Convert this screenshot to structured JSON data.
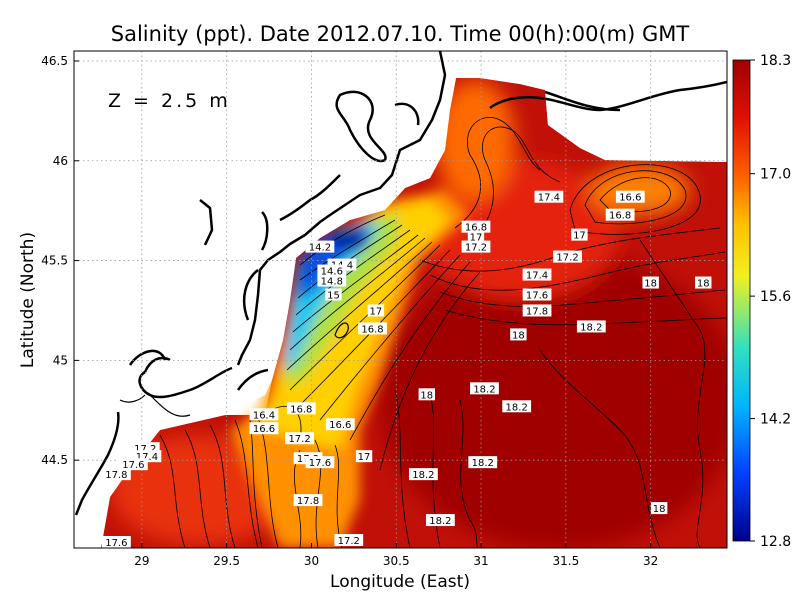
{
  "title": "Salinity (ppt). Date 2012.07.10. Time 00(h):00(m) GMT",
  "depth_label": "Z = 2.5 m",
  "x_axis": {
    "label": "Longitude (East)",
    "range": [
      28.6,
      32.45
    ],
    "ticks": [
      29,
      29.5,
      30,
      30.5,
      31,
      31.5,
      32
    ]
  },
  "y_axis": {
    "label": "Latitude (North)",
    "range": [
      44.06,
      46.55
    ],
    "ticks": [
      44.5,
      45,
      45.5,
      46,
      46.5
    ]
  },
  "colorbar": {
    "min": 12.8,
    "max": 18.3,
    "tick_labels": [
      "18.3",
      "17.0",
      "15.6",
      "14.2",
      "12.8"
    ],
    "tick_values": [
      18.3,
      17.0,
      15.6,
      14.2,
      12.8
    ],
    "colors": [
      "#00008b",
      "#0040ff",
      "#00b4ff",
      "#30e0c0",
      "#f0f020",
      "#ffc000",
      "#ff6000",
      "#e01000",
      "#a00000"
    ]
  },
  "colors": {
    "land": "#ffffff",
    "coast": "#000000",
    "grid": "#9a9a9a"
  },
  "chart_data": {
    "type": "heatmap",
    "variable": "Salinity (ppt)",
    "contour_labels": [
      {
        "v": "14.2",
        "lon": 30.05,
        "lat": 45.57
      },
      {
        "v": "14.4",
        "lon": 30.18,
        "lat": 45.48
      },
      {
        "v": "14.6",
        "lon": 30.12,
        "lat": 45.45
      },
      {
        "v": "14.8",
        "lon": 30.12,
        "lat": 45.4
      },
      {
        "v": "15",
        "lon": 30.13,
        "lat": 45.33
      },
      {
        "v": "17",
        "lon": 30.38,
        "lat": 45.25
      },
      {
        "v": "16.8",
        "lon": 30.36,
        "lat": 45.16
      },
      {
        "v": "16.8",
        "lon": 30.97,
        "lat": 45.67
      },
      {
        "v": "17",
        "lon": 30.97,
        "lat": 45.62
      },
      {
        "v": "17.2",
        "lon": 30.97,
        "lat": 45.57
      },
      {
        "v": "17.4",
        "lon": 31.4,
        "lat": 45.82
      },
      {
        "v": "16.6",
        "lon": 31.88,
        "lat": 45.82
      },
      {
        "v": "16.8",
        "lon": 31.82,
        "lat": 45.73
      },
      {
        "v": "17",
        "lon": 31.58,
        "lat": 45.63
      },
      {
        "v": "17.2",
        "lon": 31.51,
        "lat": 45.52
      },
      {
        "v": "17.4",
        "lon": 31.33,
        "lat": 45.43
      },
      {
        "v": "17.6",
        "lon": 31.33,
        "lat": 45.33
      },
      {
        "v": "17.8",
        "lon": 31.33,
        "lat": 45.25
      },
      {
        "v": "18",
        "lon": 32.0,
        "lat": 45.39
      },
      {
        "v": "18",
        "lon": 32.31,
        "lat": 45.39
      },
      {
        "v": "18.2",
        "lon": 31.65,
        "lat": 45.17
      },
      {
        "v": "18",
        "lon": 31.22,
        "lat": 45.13
      },
      {
        "v": "18",
        "lon": 30.68,
        "lat": 44.83
      },
      {
        "v": "18.2",
        "lon": 31.02,
        "lat": 44.86
      },
      {
        "v": "18.2",
        "lon": 31.21,
        "lat": 44.77
      },
      {
        "v": "16.4",
        "lon": 29.72,
        "lat": 44.73
      },
      {
        "v": "16.6",
        "lon": 29.72,
        "lat": 44.66
      },
      {
        "v": "16.8",
        "lon": 29.94,
        "lat": 44.76
      },
      {
        "v": "16.6",
        "lon": 30.17,
        "lat": 44.68
      },
      {
        "v": "17.2",
        "lon": 29.93,
        "lat": 44.61
      },
      {
        "v": "17",
        "lon": 30.31,
        "lat": 44.52
      },
      {
        "v": "17.2",
        "lon": 29.98,
        "lat": 44.51
      },
      {
        "v": "17.6",
        "lon": 30.05,
        "lat": 44.49
      },
      {
        "v": "17.2",
        "lon": 29.02,
        "lat": 44.56
      },
      {
        "v": "17.4",
        "lon": 29.03,
        "lat": 44.52
      },
      {
        "v": "17.6",
        "lon": 28.95,
        "lat": 44.48
      },
      {
        "v": "17.8",
        "lon": 28.85,
        "lat": 44.43
      },
      {
        "v": "17.8",
        "lon": 29.98,
        "lat": 44.3
      },
      {
        "v": "18.2",
        "lon": 30.66,
        "lat": 44.43
      },
      {
        "v": "18.2",
        "lon": 31.01,
        "lat": 44.49
      },
      {
        "v": "18.2",
        "lon": 30.76,
        "lat": 44.2
      },
      {
        "v": "18",
        "lon": 32.05,
        "lat": 44.26
      },
      {
        "v": "17.2",
        "lon": 30.22,
        "lat": 44.1
      },
      {
        "v": "17.6",
        "lon": 28.85,
        "lat": 44.09
      }
    ]
  }
}
